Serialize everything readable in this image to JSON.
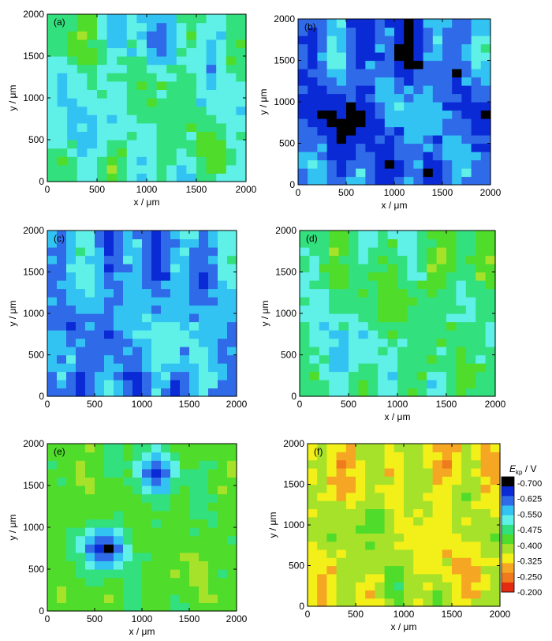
{
  "chart_data": [
    {
      "type": "heatmap",
      "panel_label": "(a)",
      "xlabel": "x / μm",
      "ylabel": "y / μm",
      "xlim": [
        0,
        2000
      ],
      "ylim": [
        0,
        2000
      ],
      "xticks": [
        "0",
        "500",
        "1000",
        "1500",
        "2000"
      ],
      "yticks": [
        "0",
        "500",
        "1000",
        "1500",
        "2000"
      ],
      "base": -0.49,
      "amp": 0.045,
      "blobs": [
        {
          "x": 150,
          "y": 1700,
          "v": 0.07
        },
        {
          "x": 700,
          "y": 300,
          "v": 0.06
        },
        {
          "x": 1600,
          "y": 400,
          "v": 0.05
        },
        {
          "x": 1200,
          "y": 1100,
          "v": 0.04
        },
        {
          "x": 300,
          "y": 500,
          "v": -0.05
        },
        {
          "x": 1000,
          "y": 1700,
          "v": -0.06
        }
      ]
    },
    {
      "type": "heatmap",
      "panel_label": "(b)",
      "xlabel": "x / μm",
      "ylabel": "y / μm",
      "xlim": [
        0,
        2000
      ],
      "ylim": [
        0,
        2000
      ],
      "xticks": [
        "0",
        "500",
        "1000",
        "1500",
        "2000"
      ],
      "yticks": [
        "0",
        "500",
        "1000",
        "1500",
        "2000"
      ],
      "base": -0.61,
      "amp": 0.05,
      "blobs": [
        {
          "x": 500,
          "y": 800,
          "v": -0.07
        },
        {
          "x": 1700,
          "y": 1500,
          "v": 0.06
        },
        {
          "x": 1200,
          "y": 900,
          "v": 0.05
        },
        {
          "x": 1000,
          "y": 1500,
          "v": -0.04
        },
        {
          "x": 300,
          "y": 1400,
          "v": 0.04
        }
      ]
    },
    {
      "type": "heatmap",
      "panel_label": "(c)",
      "xlabel": "",
      "ylabel": "y / μm",
      "xlim": [
        0,
        2000
      ],
      "ylim": [
        0,
        2000
      ],
      "xticks": [
        "0",
        "500",
        "1000",
        "1500",
        "2000"
      ],
      "yticks": [
        "0",
        "500",
        "1000",
        "1500",
        "2000"
      ],
      "base": -0.57,
      "amp": 0.05,
      "blobs": [
        {
          "x": 200,
          "y": 100,
          "v": -0.08
        },
        {
          "x": 1800,
          "y": 1000,
          "v": 0.04
        },
        {
          "x": 700,
          "y": 1400,
          "v": -0.05
        },
        {
          "x": 1200,
          "y": 600,
          "v": 0.05
        },
        {
          "x": 300,
          "y": 1300,
          "v": 0.05
        }
      ]
    },
    {
      "type": "heatmap",
      "panel_label": "(d)",
      "xlabel": "x / μm",
      "ylabel": "y / μm",
      "xlim": [
        0,
        2000
      ],
      "ylim": [
        0,
        2000
      ],
      "xticks": [
        "0",
        "500",
        "1000",
        "1500",
        "2000"
      ],
      "yticks": [
        "0",
        "500",
        "1000",
        "1500",
        "2000"
      ],
      "base": -0.455,
      "amp": 0.04,
      "blobs": [
        {
          "x": 1500,
          "y": 1600,
          "v": 0.07
        },
        {
          "x": 400,
          "y": 600,
          "v": -0.06
        },
        {
          "x": 200,
          "y": 200,
          "v": -0.05
        },
        {
          "x": 1000,
          "y": 1200,
          "v": 0.03
        }
      ]
    },
    {
      "type": "heatmap",
      "panel_label": "(e)",
      "xlabel": "x / μm",
      "ylabel": "y / μm",
      "xlim": [
        0,
        2000
      ],
      "ylim": [
        0,
        2000
      ],
      "xticks": [
        "0",
        "500",
        "1000",
        "1500",
        "2000"
      ],
      "yticks": [
        "0",
        "500",
        "1000",
        "1500",
        "2000"
      ],
      "base": -0.41,
      "amp": 0.025,
      "blobs": [
        {
          "x": 600,
          "y": 750,
          "v": -0.25,
          "w": 230
        },
        {
          "x": 1150,
          "y": 1650,
          "v": -0.2,
          "w": 230
        },
        {
          "x": 1500,
          "y": 500,
          "v": 0.03
        },
        {
          "x": 200,
          "y": 1200,
          "v": 0.02
        }
      ]
    },
    {
      "type": "heatmap",
      "panel_label": "(f)",
      "xlabel": "x / μm",
      "ylabel": "y / μm",
      "xlim": [
        0,
        2000
      ],
      "ylim": [
        0,
        2000
      ],
      "xticks": [
        "0",
        "500",
        "1000",
        "1500",
        "2000"
      ],
      "yticks": [
        "0",
        "500",
        "1000",
        "1500",
        "2000"
      ],
      "base": -0.325,
      "amp": 0.04,
      "blobs": [
        {
          "x": 700,
          "y": 1100,
          "v": -0.07
        },
        {
          "x": 1400,
          "y": 1700,
          "v": 0.05
        },
        {
          "x": 300,
          "y": 1500,
          "v": 0.04
        },
        {
          "x": 1600,
          "y": 500,
          "v": 0.03
        },
        {
          "x": 1000,
          "y": 300,
          "v": -0.03
        }
      ]
    }
  ],
  "colorbar": {
    "title_main": "E",
    "title_sub": "kp",
    "title_unit": " / V",
    "levels": [
      "-0.700",
      "-0.625",
      "-0.550",
      "-0.475",
      "-0.400",
      "-0.325",
      "-0.250",
      "-0.200"
    ],
    "colors": [
      "#000000",
      "#0a2ad6",
      "#2f6be8",
      "#33c3f2",
      "#5ff0e8",
      "#33e07e",
      "#4fdc2a",
      "#a6e22a",
      "#f2ef19",
      "#f5a623",
      "#f07a1e",
      "#e52a12"
    ]
  }
}
